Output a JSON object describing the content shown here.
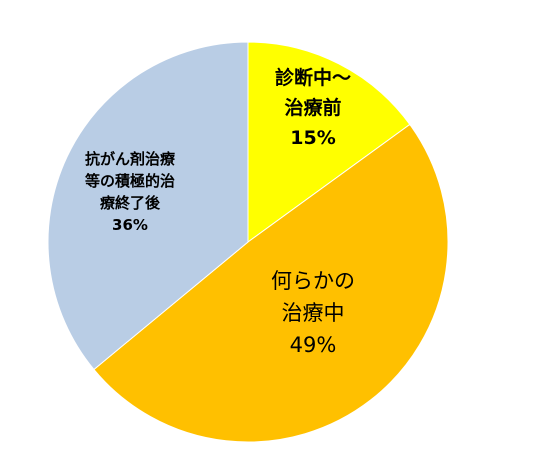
{
  "chart_data": {
    "type": "pie",
    "categories": [
      "診断中～\n治療前",
      "何らかの\n治療中",
      "抗がん剤治療\n等の積極的治\n療終了後"
    ],
    "values": [
      15,
      49,
      36
    ],
    "value_labels": [
      "15%",
      "49%",
      "36%"
    ],
    "colors": [
      "#ffff00",
      "#ffc000",
      "#b9cde5"
    ]
  }
}
